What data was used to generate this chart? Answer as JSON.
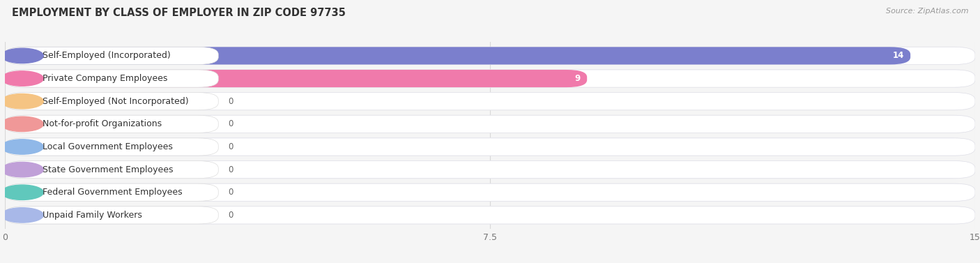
{
  "title": "EMPLOYMENT BY CLASS OF EMPLOYER IN ZIP CODE 97735",
  "source": "Source: ZipAtlas.com",
  "categories": [
    "Self-Employed (Incorporated)",
    "Private Company Employees",
    "Self-Employed (Not Incorporated)",
    "Not-for-profit Organizations",
    "Local Government Employees",
    "State Government Employees",
    "Federal Government Employees",
    "Unpaid Family Workers"
  ],
  "values": [
    14,
    9,
    0,
    0,
    0,
    0,
    0,
    0
  ],
  "bar_colors": [
    "#7b7fcd",
    "#f07aab",
    "#f5c483",
    "#f09898",
    "#90b8e8",
    "#c0a0d8",
    "#60c8bc",
    "#a8b8e8"
  ],
  "label_colors": [
    "#7b7fcd",
    "#f07aab",
    "#f5c483",
    "#f09898",
    "#90b8e8",
    "#c0a0d8",
    "#60c8bc",
    "#a8b8e8"
  ],
  "xlim": [
    0,
    15
  ],
  "xticks": [
    0,
    7.5,
    15
  ],
  "row_bg_color": "#ebebeb",
  "row_pill_color": "#f5f5f5",
  "fig_bg_color": "#f5f5f5",
  "title_fontsize": 10.5,
  "label_fontsize": 9,
  "value_fontsize": 8.5
}
